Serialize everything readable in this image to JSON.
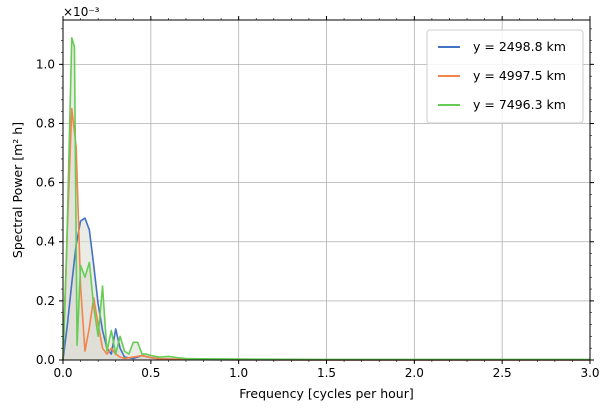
{
  "chart_data": {
    "type": "line",
    "xlabel": "Frequency [cycles per hour]",
    "ylabel": "Spectral Power [m² h]",
    "y_scale_label": "×10⁻³",
    "xlim": [
      0.0,
      3.0
    ],
    "ylim": [
      0.0,
      0.00115
    ],
    "x_ticks": [
      0.0,
      0.5,
      1.0,
      1.5,
      2.0,
      2.5,
      3.0
    ],
    "x_tick_labels": [
      "0.0",
      "0.5",
      "1.0",
      "1.5",
      "2.0",
      "2.5",
      "3.0"
    ],
    "y_ticks": [
      0.0,
      0.0002,
      0.0004,
      0.0006,
      0.0008,
      0.001
    ],
    "y_tick_labels": [
      "0.0",
      "0.2",
      "0.4",
      "0.6",
      "0.8",
      "1.0"
    ],
    "grid": true,
    "legend_position": "top-right",
    "fill_under": true,
    "fill_color": "#dcdcd4",
    "series": [
      {
        "name": "y = 2498.8 km",
        "color": "#4472c4",
        "x": [
          0.0,
          0.025,
          0.05,
          0.075,
          0.1,
          0.125,
          0.15,
          0.175,
          0.2,
          0.225,
          0.25,
          0.275,
          0.3,
          0.325,
          0.35,
          0.4,
          0.45,
          0.5,
          0.55,
          0.6,
          0.7,
          0.8,
          1.0,
          1.5,
          2.0,
          2.5,
          3.0
        ],
        "y": [
          0.0,
          0.00012,
          0.00026,
          0.00039,
          0.00047,
          0.00048,
          0.00044,
          0.00032,
          0.00019,
          0.0001,
          4e-05,
          2e-05,
          0.000105,
          4e-05,
          1e-05,
          5e-06,
          1.5e-05,
          8e-06,
          4e-06,
          3e-06,
          2e-06,
          1e-06,
          5e-07,
          2e-07,
          1e-07,
          1e-07,
          1e-07
        ]
      },
      {
        "name": "y = 4997.5 km",
        "color": "#f5844c",
        "x": [
          0.0,
          0.025,
          0.05,
          0.075,
          0.1,
          0.125,
          0.15,
          0.175,
          0.2,
          0.225,
          0.25,
          0.275,
          0.3,
          0.325,
          0.35,
          0.4,
          0.45,
          0.5,
          0.55,
          0.6,
          0.7,
          0.8,
          1.0,
          1.5,
          2.0,
          2.5,
          3.0
        ],
        "y": [
          0.0,
          0.00045,
          0.00085,
          0.00072,
          0.00025,
          3e-05,
          0.00011,
          0.00021,
          0.00012,
          4e-05,
          2e-05,
          4e-05,
          2e-05,
          1e-05,
          5e-06,
          1e-05,
          1.5e-05,
          8e-06,
          4e-06,
          3e-06,
          2e-06,
          1e-06,
          5e-07,
          2e-07,
          1e-07,
          1e-07,
          1e-07
        ]
      },
      {
        "name": "y = 7496.3 km",
        "color": "#66cc55",
        "x": [
          0.0,
          0.02,
          0.035,
          0.05,
          0.065,
          0.08,
          0.1,
          0.125,
          0.15,
          0.175,
          0.2,
          0.225,
          0.25,
          0.275,
          0.3,
          0.325,
          0.35,
          0.375,
          0.4,
          0.425,
          0.45,
          0.475,
          0.5,
          0.55,
          0.6,
          0.65,
          0.7,
          0.8,
          1.0,
          1.5,
          2.0,
          2.5,
          3.0
        ],
        "y": [
          0.0,
          0.00035,
          0.00072,
          0.00109,
          0.00106,
          5e-05,
          0.00032,
          0.00028,
          0.00033,
          0.00018,
          8e-05,
          0.00025,
          3e-05,
          0.0001,
          2e-05,
          8e-05,
          3e-05,
          2e-05,
          6e-05,
          6e-05,
          2e-05,
          2e-05,
          1.5e-05,
          1e-05,
          1.2e-05,
          8e-06,
          5e-06,
          4e-06,
          3e-06,
          2e-06,
          2e-06,
          2e-06,
          2e-06
        ]
      }
    ]
  }
}
